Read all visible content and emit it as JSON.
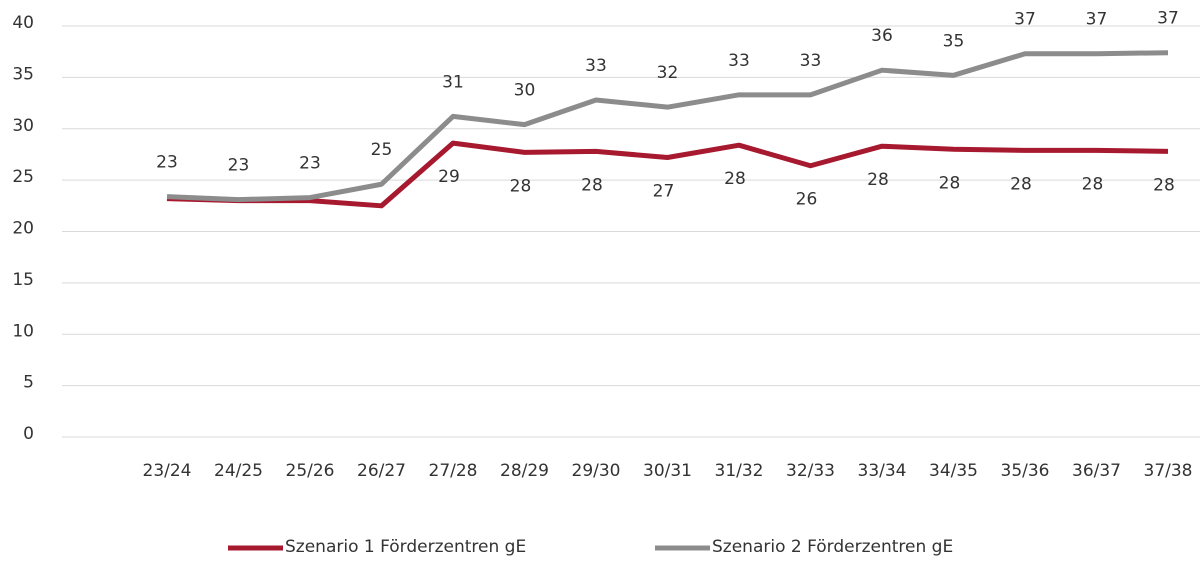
{
  "chart_data": {
    "type": "line",
    "categories": [
      "23/24",
      "24/25",
      "25/26",
      "26/27",
      "27/28",
      "28/29",
      "29/30",
      "30/31",
      "31/32",
      "32/33",
      "33/34",
      "34/35",
      "35/36",
      "36/37",
      "37/38"
    ],
    "series": [
      {
        "name": "Szenario 1 Förderzentren gE",
        "color": "#a6192e",
        "values": [
          23.2,
          23.0,
          23.0,
          22.5,
          28.6,
          27.7,
          27.8,
          27.2,
          28.4,
          26.4,
          28.3,
          28.0,
          27.9,
          27.9,
          27.8
        ],
        "value_labels": [
          null,
          null,
          null,
          null,
          "29",
          "28",
          "28",
          "27",
          "28",
          "26",
          "28",
          "28",
          "28",
          "28",
          "28"
        ]
      },
      {
        "name": "Szenario 2 Förderzentren gE",
        "color": "#8c8c8c",
        "values": [
          23.4,
          23.1,
          23.3,
          24.6,
          31.2,
          30.4,
          32.8,
          32.1,
          33.3,
          33.3,
          35.7,
          35.2,
          37.3,
          37.3,
          37.4
        ],
        "value_labels": [
          "23",
          "23",
          "23",
          "25",
          "31",
          "30",
          "33",
          "32",
          "33",
          "33",
          "36",
          "35",
          "37",
          "37",
          "37"
        ]
      }
    ],
    "ylim": [
      0,
      40
    ],
    "yticks": [
      0,
      5,
      10,
      15,
      20,
      25,
      30,
      35,
      40
    ],
    "grid": true
  }
}
